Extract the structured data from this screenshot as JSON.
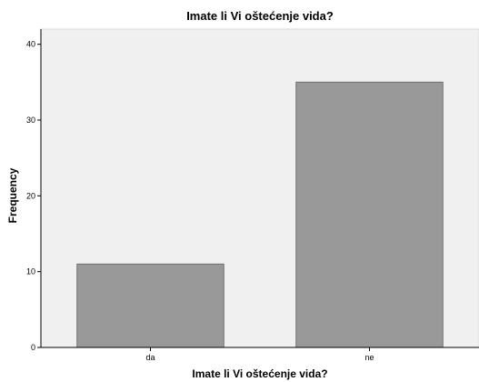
{
  "chart_data": {
    "type": "bar",
    "title": "Imate li Vi oštećenje vida?",
    "xlabel": "Imate li Vi oštećenje vida?",
    "ylabel": "Frequency",
    "categories": [
      "da",
      "ne"
    ],
    "values": [
      11,
      35
    ],
    "ylim": [
      0,
      42
    ],
    "yticks": [
      0,
      10,
      20,
      30,
      40
    ],
    "grid": false,
    "legend": "none",
    "colors": {
      "background": "#f0f0f0",
      "bar": "#999999",
      "bar_edge": "#6e6e6e",
      "axis": "#000000"
    }
  }
}
